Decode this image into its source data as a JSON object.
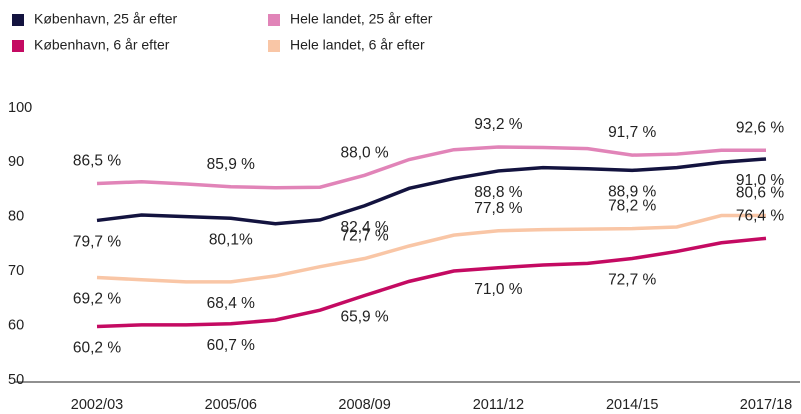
{
  "chart_data": {
    "type": "line",
    "categories": [
      "2002/03",
      null,
      null,
      "2005/06",
      null,
      null,
      "2008/09",
      null,
      null,
      "2011/12",
      null,
      null,
      "2014/15",
      null,
      null,
      "2017/18"
    ],
    "series": [
      {
        "name": "København, 25 år efter",
        "color": "#13133f",
        "values": [
          79.7,
          80.7,
          80.4,
          80.1,
          79.1,
          79.8,
          82.4,
          85.6,
          87.4,
          88.8,
          89.4,
          89.2,
          88.9,
          89.4,
          90.4,
          91.0
        ],
        "value_labels": [
          "79,7 %",
          null,
          null,
          "80,1%",
          null,
          null,
          "82,4 %",
          null,
          null,
          "88,8 %",
          null,
          null,
          "88,9 %",
          null,
          null,
          "91,0 %"
        ]
      },
      {
        "name": "Hele landet, 25 år efter",
        "color": "#e184b8",
        "values": [
          86.5,
          86.8,
          86.4,
          85.9,
          85.7,
          85.8,
          88.0,
          90.9,
          92.7,
          93.2,
          93.1,
          92.9,
          91.7,
          91.9,
          92.6,
          92.6
        ],
        "value_labels": [
          "86,5 %",
          null,
          null,
          "85,9 %",
          null,
          null,
          "88,0 %",
          null,
          null,
          "93,2 %",
          null,
          null,
          "91,7 %",
          null,
          null,
          "92,6 %"
        ]
      },
      {
        "name": "København, 6 år efter",
        "color": "#c40a62",
        "values": [
          60.2,
          60.5,
          60.5,
          60.7,
          61.4,
          63.2,
          65.9,
          68.5,
          70.4,
          71.0,
          71.5,
          71.8,
          72.7,
          74.0,
          75.6,
          76.4
        ],
        "value_labels": [
          "60,2 %",
          null,
          null,
          "60,7 %",
          null,
          null,
          "65,9 %",
          null,
          null,
          "71,0 %",
          null,
          null,
          "72,7 %",
          null,
          null,
          "76,4 %"
        ]
      },
      {
        "name": "Hele landet, 6 år efter",
        "color": "#f9c6a6",
        "values": [
          69.2,
          68.8,
          68.4,
          68.4,
          69.5,
          71.2,
          72.7,
          75.0,
          77.0,
          77.8,
          78.0,
          78.1,
          78.2,
          78.5,
          80.6,
          80.6
        ],
        "value_labels": [
          "69,2 %",
          null,
          null,
          "68,4 %",
          null,
          null,
          "72,7 %",
          null,
          null,
          "77,8 %",
          null,
          null,
          "78,2 %",
          null,
          null,
          "80,6 %"
        ]
      }
    ],
    "ylim": [
      50,
      100
    ],
    "yticks": [
      50,
      60,
      70,
      80,
      90,
      100
    ],
    "grid": false
  }
}
